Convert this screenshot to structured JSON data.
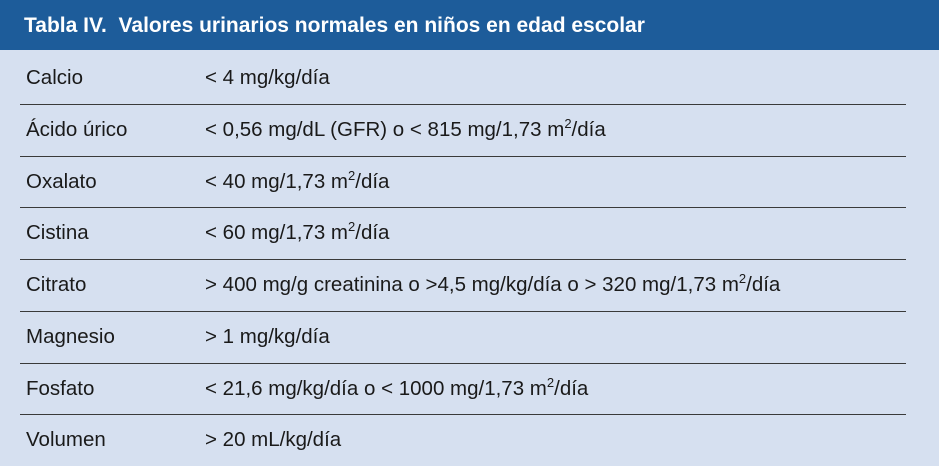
{
  "table": {
    "title": "Tabla IV.  Valores urinarios normales en niños en edad escolar",
    "rows": [
      {
        "name": "Calcio",
        "value": [
          "< 4 mg/kg/día"
        ]
      },
      {
        "name": "Ácido úrico",
        "value": [
          "< 0,56 mg/dL (GFR) o < 815 mg/1,73 m",
          "2",
          "/día"
        ]
      },
      {
        "name": "Oxalato",
        "value": [
          "< 40 mg/1,73 m",
          "2",
          "/día"
        ]
      },
      {
        "name": "Cistina",
        "value": [
          "< 60 mg/1,73 m",
          "2",
          "/día"
        ]
      },
      {
        "name": "Citrato",
        "value": [
          "> 400 mg/g creatinina o >4,5 mg/kg/día o > 320 mg/1,73 m",
          "2",
          "/día"
        ]
      },
      {
        "name": "Magnesio",
        "value": [
          "> 1 mg/kg/día"
        ]
      },
      {
        "name": "Fosfato",
        "value": [
          "< 21,6 mg/kg/día o < 1000 mg/1,73 m",
          "2",
          "/día"
        ]
      },
      {
        "name": "Volumen",
        "value": [
          "> 20 mL/kg/día"
        ]
      }
    ]
  }
}
